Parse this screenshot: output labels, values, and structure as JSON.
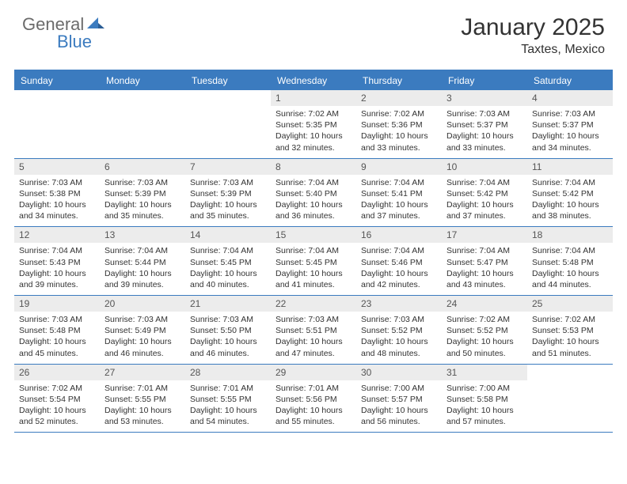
{
  "logo": {
    "part1": "General",
    "part2": "Blue"
  },
  "title": "January 2025",
  "location": "Taxtes, Mexico",
  "colors": {
    "header_bg": "#3b7bbf",
    "header_text": "#ffffff",
    "daynum_bg": "#ececec",
    "daynum_text": "#555555",
    "body_text": "#333333",
    "border": "#3b7bbf",
    "logo_gray": "#6b6b6b",
    "logo_blue": "#3b7bbf",
    "page_bg": "#ffffff"
  },
  "day_headers": [
    "Sunday",
    "Monday",
    "Tuesday",
    "Wednesday",
    "Thursday",
    "Friday",
    "Saturday"
  ],
  "weeks": [
    [
      null,
      null,
      null,
      {
        "n": "1",
        "sr": "7:02 AM",
        "ss": "5:35 PM",
        "dl": "10 hours and 32 minutes."
      },
      {
        "n": "2",
        "sr": "7:02 AM",
        "ss": "5:36 PM",
        "dl": "10 hours and 33 minutes."
      },
      {
        "n": "3",
        "sr": "7:03 AM",
        "ss": "5:37 PM",
        "dl": "10 hours and 33 minutes."
      },
      {
        "n": "4",
        "sr": "7:03 AM",
        "ss": "5:37 PM",
        "dl": "10 hours and 34 minutes."
      }
    ],
    [
      {
        "n": "5",
        "sr": "7:03 AM",
        "ss": "5:38 PM",
        "dl": "10 hours and 34 minutes."
      },
      {
        "n": "6",
        "sr": "7:03 AM",
        "ss": "5:39 PM",
        "dl": "10 hours and 35 minutes."
      },
      {
        "n": "7",
        "sr": "7:03 AM",
        "ss": "5:39 PM",
        "dl": "10 hours and 35 minutes."
      },
      {
        "n": "8",
        "sr": "7:04 AM",
        "ss": "5:40 PM",
        "dl": "10 hours and 36 minutes."
      },
      {
        "n": "9",
        "sr": "7:04 AM",
        "ss": "5:41 PM",
        "dl": "10 hours and 37 minutes."
      },
      {
        "n": "10",
        "sr": "7:04 AM",
        "ss": "5:42 PM",
        "dl": "10 hours and 37 minutes."
      },
      {
        "n": "11",
        "sr": "7:04 AM",
        "ss": "5:42 PM",
        "dl": "10 hours and 38 minutes."
      }
    ],
    [
      {
        "n": "12",
        "sr": "7:04 AM",
        "ss": "5:43 PM",
        "dl": "10 hours and 39 minutes."
      },
      {
        "n": "13",
        "sr": "7:04 AM",
        "ss": "5:44 PM",
        "dl": "10 hours and 39 minutes."
      },
      {
        "n": "14",
        "sr": "7:04 AM",
        "ss": "5:45 PM",
        "dl": "10 hours and 40 minutes."
      },
      {
        "n": "15",
        "sr": "7:04 AM",
        "ss": "5:45 PM",
        "dl": "10 hours and 41 minutes."
      },
      {
        "n": "16",
        "sr": "7:04 AM",
        "ss": "5:46 PM",
        "dl": "10 hours and 42 minutes."
      },
      {
        "n": "17",
        "sr": "7:04 AM",
        "ss": "5:47 PM",
        "dl": "10 hours and 43 minutes."
      },
      {
        "n": "18",
        "sr": "7:04 AM",
        "ss": "5:48 PM",
        "dl": "10 hours and 44 minutes."
      }
    ],
    [
      {
        "n": "19",
        "sr": "7:03 AM",
        "ss": "5:48 PM",
        "dl": "10 hours and 45 minutes."
      },
      {
        "n": "20",
        "sr": "7:03 AM",
        "ss": "5:49 PM",
        "dl": "10 hours and 46 minutes."
      },
      {
        "n": "21",
        "sr": "7:03 AM",
        "ss": "5:50 PM",
        "dl": "10 hours and 46 minutes."
      },
      {
        "n": "22",
        "sr": "7:03 AM",
        "ss": "5:51 PM",
        "dl": "10 hours and 47 minutes."
      },
      {
        "n": "23",
        "sr": "7:03 AM",
        "ss": "5:52 PM",
        "dl": "10 hours and 48 minutes."
      },
      {
        "n": "24",
        "sr": "7:02 AM",
        "ss": "5:52 PM",
        "dl": "10 hours and 50 minutes."
      },
      {
        "n": "25",
        "sr": "7:02 AM",
        "ss": "5:53 PM",
        "dl": "10 hours and 51 minutes."
      }
    ],
    [
      {
        "n": "26",
        "sr": "7:02 AM",
        "ss": "5:54 PM",
        "dl": "10 hours and 52 minutes."
      },
      {
        "n": "27",
        "sr": "7:01 AM",
        "ss": "5:55 PM",
        "dl": "10 hours and 53 minutes."
      },
      {
        "n": "28",
        "sr": "7:01 AM",
        "ss": "5:55 PM",
        "dl": "10 hours and 54 minutes."
      },
      {
        "n": "29",
        "sr": "7:01 AM",
        "ss": "5:56 PM",
        "dl": "10 hours and 55 minutes."
      },
      {
        "n": "30",
        "sr": "7:00 AM",
        "ss": "5:57 PM",
        "dl": "10 hours and 56 minutes."
      },
      {
        "n": "31",
        "sr": "7:00 AM",
        "ss": "5:58 PM",
        "dl": "10 hours and 57 minutes."
      },
      null
    ]
  ],
  "labels": {
    "sunrise": "Sunrise: ",
    "sunset": "Sunset: ",
    "daylight": "Daylight: "
  }
}
